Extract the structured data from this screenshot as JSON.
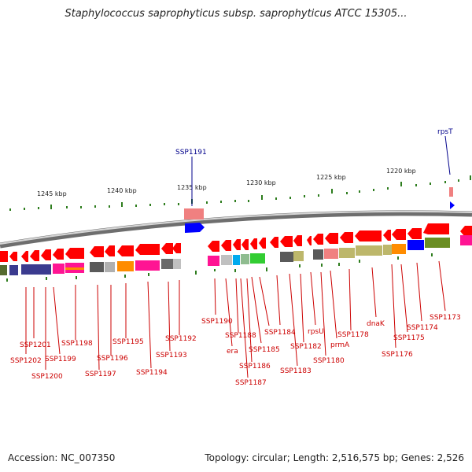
{
  "title": "Staphylococcus saprophyticus subsp. saprophyticus ATCC 15305...",
  "footer": {
    "accession": "Accession: NC_007350",
    "summary": "Topology: circular; Length: 2,516,575 bp; Genes: 2,526"
  },
  "scale_labels": [
    "1245 kbp",
    "1240 kbp",
    "1235 kbp",
    "1230 kbp",
    "1225 kbp",
    "1220 kbp"
  ],
  "top_gene_labels": [
    "SSP1191",
    "rpsT"
  ],
  "bottom_gene_labels": [
    "SSP1201",
    "SSP1202",
    "SSP1200",
    "SSP1199",
    "SSP1198",
    "SSP1197",
    "SSP1196",
    "SSP1195",
    "SSP1194",
    "SSP1193",
    "SSP1192",
    "SSP1190",
    "era",
    "SSP1188",
    "SSP1187",
    "SSP1186",
    "SSP1185",
    "SSP1184",
    "SSP1183",
    "SSP1182",
    "rpsU",
    "SSP1180",
    "prmA",
    "SSP1178",
    "dnaK",
    "SSP1176",
    "SSP1175",
    "SSP1174",
    "SSP1173"
  ],
  "colors": {
    "forward_gene": "#ff0000",
    "reverse_gene": "#0000ff",
    "bottom_label": "#cc0000",
    "top_label": "#00008b",
    "scale_tick": "#2e7d1e",
    "backbone": "#888888"
  }
}
